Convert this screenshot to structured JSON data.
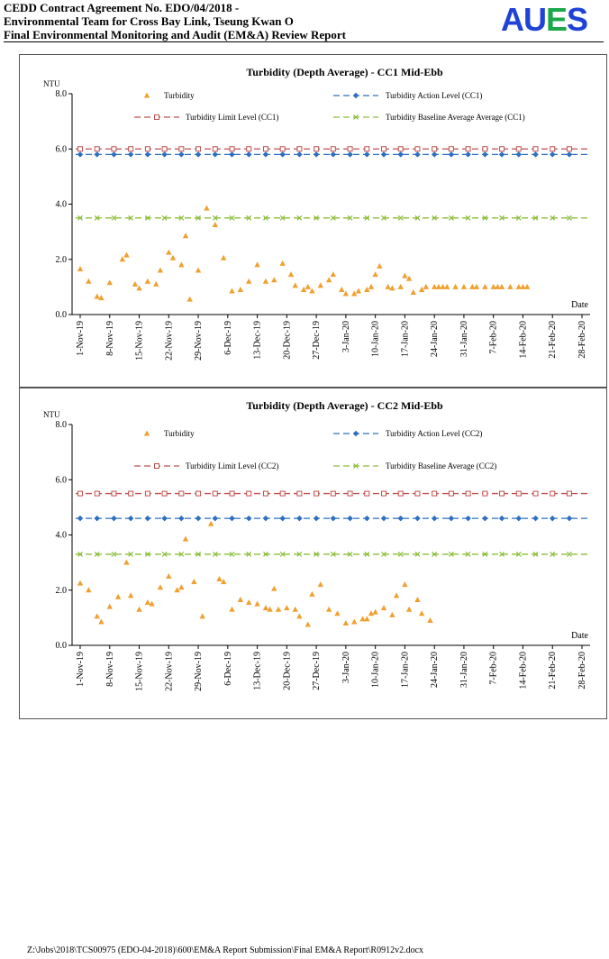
{
  "header": {
    "line1": "CEDD Contract Agreement No. EDO/04/2018 -",
    "line2": "Environmental Team for Cross Bay Link, Tseung Kwan O",
    "line3": "Final Environmental Monitoring and Audit (EM&A) Review Report",
    "logo": {
      "part1": "AU",
      "part2": "E",
      "part3": "S"
    }
  },
  "colors": {
    "turbidity": "#f0a030",
    "action": "#2e6fbf",
    "limit": "#c0504d",
    "baseline": "#8bbe3a"
  },
  "footer": {
    "path": "Z:\\Jobs\\2018\\TCS00975 (EDO-04-2018)\\600\\EM&A Report Submission\\Final EM&A Report\\R0912v2.docx"
  },
  "chart_data": [
    {
      "type": "scatter",
      "title": "Turbidity (Depth Average) - CC1 Mid-Ebb",
      "ylabel": "NTU",
      "xlabel": "Date",
      "ylim": [
        0,
        8
      ],
      "yticks": [
        "0.0",
        "2.0",
        "4.0",
        "6.0",
        "8.0"
      ],
      "xlim_days": [
        0,
        120
      ],
      "xtick_labels": [
        "1-Nov-19",
        "8-Nov-19",
        "15-Nov-19",
        "22-Nov-19",
        "29-Nov-19",
        "6-Dec-19",
        "13-Dec-19",
        "20-Dec-19",
        "27-Dec-19",
        "3-Jan-20",
        "10-Jan-20",
        "17-Jan-20",
        "24-Jan-20",
        "31-Jan-20",
        "7-Feb-20",
        "14-Feb-20",
        "21-Feb-20",
        "28-Feb-20"
      ],
      "legend": {
        "turbidity": "Turbidity",
        "action": "Turbidity Action Level (CC1)",
        "limit": "Turbidity Limit Level (CC1)",
        "baseline": "Turbidity Baseline Average Average (CC1)"
      },
      "action_level": 5.8,
      "limit_level": 6.0,
      "baseline_average": 3.5,
      "series": [
        {
          "name": "Turbidity",
          "x_days": [
            0,
            2,
            4,
            5,
            7,
            10,
            11,
            13,
            14,
            16,
            18,
            19,
            21,
            22,
            24,
            25,
            26,
            28,
            30,
            32,
            34,
            36,
            38,
            40,
            42,
            44,
            46,
            48,
            50,
            51,
            53,
            54,
            55,
            57,
            59,
            60,
            62,
            63,
            65,
            66,
            68,
            69,
            70,
            71,
            73,
            74,
            76,
            77,
            78,
            79,
            81,
            82,
            84,
            85,
            86,
            87,
            89,
            91,
            93,
            94,
            96,
            98,
            99,
            100,
            102,
            104,
            105,
            106
          ],
          "values": [
            1.65,
            1.2,
            0.65,
            0.6,
            1.15,
            2.0,
            2.15,
            1.1,
            0.95,
            1.2,
            1.1,
            1.6,
            2.25,
            2.05,
            1.8,
            2.85,
            0.55,
            1.6,
            3.85,
            3.25,
            2.05,
            0.85,
            0.9,
            1.2,
            1.8,
            1.2,
            1.25,
            1.85,
            1.45,
            1.05,
            0.9,
            1.0,
            0.85,
            1.05,
            1.25,
            1.45,
            0.9,
            0.75,
            0.75,
            0.85,
            0.9,
            1.0,
            1.45,
            1.75,
            1.0,
            0.95,
            1.0,
            1.4,
            1.3,
            0.8,
            0.9,
            1.0,
            1.0,
            1.0,
            1.0,
            1.0,
            1.0,
            1.0,
            1.0,
            1.0,
            1.0,
            1.0,
            1.0,
            1.0,
            1.0,
            1.0,
            1.0,
            1.0
          ]
        }
      ]
    },
    {
      "type": "scatter",
      "title": "Turbidity (Depth Average) - CC2 Mid-Ebb",
      "ylabel": "NTU",
      "xlabel": "Date",
      "ylim": [
        0,
        8
      ],
      "yticks": [
        "0.0",
        "2.0",
        "4.0",
        "6.0",
        "8.0"
      ],
      "xlim_days": [
        0,
        120
      ],
      "xtick_labels": [
        "1-Nov-19",
        "8-Nov-19",
        "15-Nov-19",
        "22-Nov-19",
        "29-Nov-19",
        "6-Dec-19",
        "13-Dec-19",
        "20-Dec-19",
        "27-Dec-19",
        "3-Jan-20",
        "10-Jan-20",
        "17-Jan-20",
        "24-Jan-20",
        "31-Jan-20",
        "7-Feb-20",
        "14-Feb-20",
        "21-Feb-20",
        "28-Feb-20"
      ],
      "legend": {
        "turbidity": "Turbidity",
        "action": "Turbidity Action Level (CC2)",
        "limit": "Turbidity Limit Level (CC2)",
        "baseline": "Turbidity Baseline Average (CC2)"
      },
      "action_level": 4.6,
      "limit_level": 5.5,
      "baseline_average": 3.3,
      "series": [
        {
          "name": "Turbidity",
          "x_days": [
            0,
            2,
            4,
            5,
            7,
            9,
            11,
            12,
            14,
            16,
            17,
            19,
            21,
            23,
            24,
            25,
            27,
            29,
            31,
            33,
            34,
            36,
            38,
            40,
            42,
            44,
            45,
            46,
            47,
            49,
            51,
            52,
            54,
            55,
            57,
            59,
            61,
            63,
            65,
            67,
            68,
            69,
            70,
            72,
            74,
            75,
            77,
            78,
            80,
            81,
            83
          ],
          "values": [
            2.25,
            2.0,
            1.05,
            0.85,
            1.4,
            1.75,
            3.0,
            1.8,
            1.3,
            1.55,
            1.5,
            2.1,
            2.5,
            2.0,
            2.1,
            3.85,
            2.3,
            1.05,
            4.4,
            2.4,
            2.3,
            1.3,
            1.65,
            1.55,
            1.5,
            1.35,
            1.3,
            2.05,
            1.3,
            1.35,
            1.3,
            1.05,
            0.75,
            1.85,
            2.2,
            1.3,
            1.15,
            0.8,
            0.85,
            0.95,
            0.95,
            1.15,
            1.2,
            1.35,
            1.1,
            1.8,
            2.2,
            1.3,
            1.65,
            1.15,
            0.9
          ]
        }
      ]
    }
  ]
}
